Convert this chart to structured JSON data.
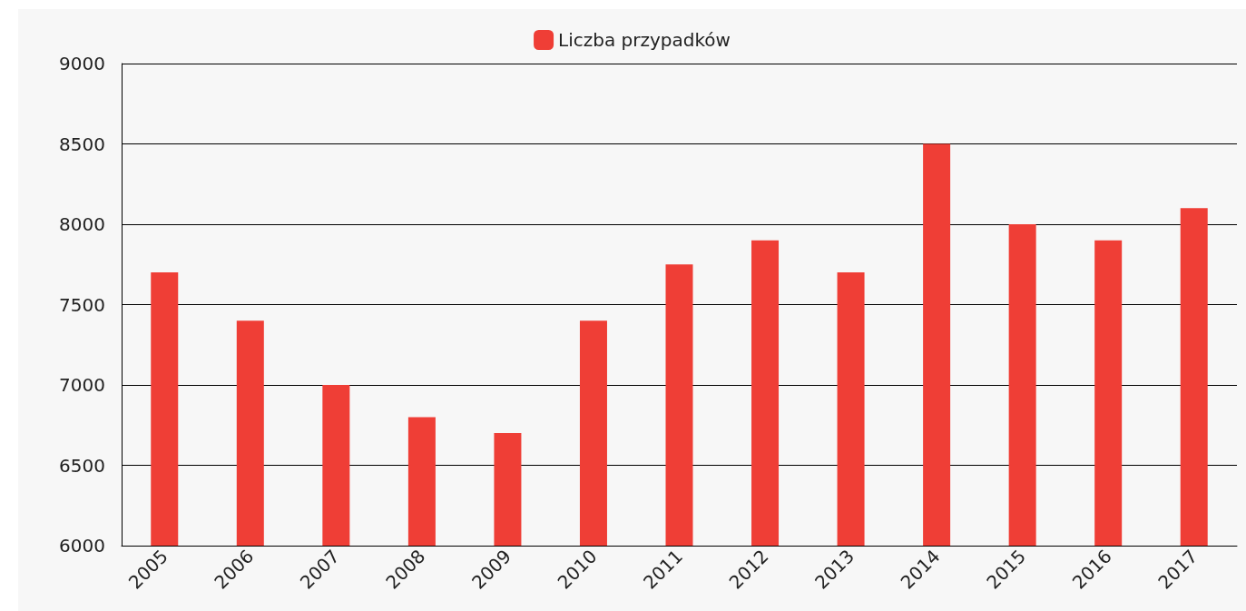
{
  "chart_data": {
    "type": "bar",
    "categories": [
      "2005",
      "2006",
      "2007",
      "2008",
      "2009",
      "2010",
      "2011",
      "2012",
      "2013",
      "2014",
      "2015",
      "2016",
      "2017"
    ],
    "series": [
      {
        "name": "Liczba przypadków",
        "color": "#ef3e36",
        "values": [
          7700,
          7400,
          7000,
          6800,
          6700,
          7400,
          7750,
          7900,
          7700,
          8500,
          8000,
          7900,
          8100
        ]
      }
    ],
    "ylim": [
      6000,
      9000
    ],
    "yticks": [
      6000,
      6500,
      7000,
      7500,
      8000,
      8500,
      9000
    ],
    "grid": "y",
    "legend": "top"
  }
}
